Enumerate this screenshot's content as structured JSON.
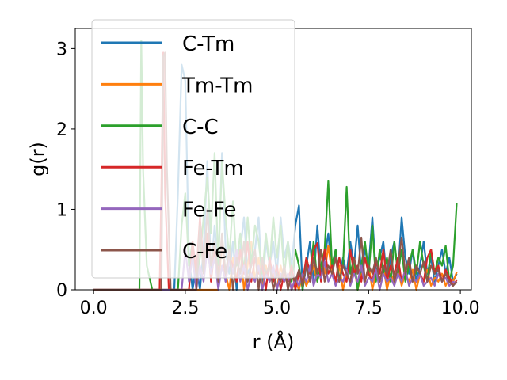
{
  "chart_data": {
    "type": "line",
    "title": "",
    "xlabel": "r (Å)",
    "ylabel": "g(r)",
    "xlim": [
      -0.5,
      10.3
    ],
    "ylim": [
      0,
      3.25
    ],
    "xticks": [
      0.0,
      2.5,
      5.0,
      7.5,
      10.0
    ],
    "xtick_labels": [
      "0.0",
      "2.5",
      "5.0",
      "7.5",
      "10.0"
    ],
    "yticks": [
      0,
      1,
      2,
      3
    ],
    "ytick_labels": [
      "0",
      "1",
      "2",
      "3"
    ],
    "grid": false,
    "legend_position": "top-left",
    "series": [
      {
        "name": "C-Tm",
        "color": "#1f77b4",
        "x": [
          0,
          2.2,
          2.3,
          2.4,
          2.5,
          2.6,
          2.7,
          2.8,
          2.9,
          3.0,
          3.1,
          3.2,
          3.3,
          3.4,
          3.5,
          3.6,
          3.7,
          3.8,
          3.9,
          4.0,
          4.1,
          4.2,
          4.3,
          4.4,
          4.5,
          4.6,
          4.7,
          4.8,
          4.9,
          5.0,
          5.1,
          5.2,
          5.3,
          5.4,
          5.5,
          5.6,
          5.7,
          5.8,
          5.9,
          6.0,
          6.1,
          6.2,
          6.3,
          6.4,
          6.5,
          6.6,
          6.7,
          6.8,
          6.9,
          7.0,
          7.1,
          7.2,
          7.3,
          7.4,
          7.5,
          7.6,
          7.7,
          7.8,
          7.9,
          8.0,
          8.1,
          8.2,
          8.3,
          8.4,
          8.5,
          8.6,
          8.7,
          8.8,
          8.9,
          9.0,
          9.1,
          9.2,
          9.3,
          9.4,
          9.5,
          9.6,
          9.7,
          9.8,
          9.9
        ],
        "y": [
          0,
          0,
          1.2,
          2.8,
          2.6,
          0.4,
          0.0,
          0.3,
          0.0,
          0.5,
          1.6,
          0.2,
          0.8,
          0.3,
          1.7,
          0.5,
          0.2,
          0.6,
          0.0,
          0.5,
          0.9,
          0.2,
          0.3,
          0.5,
          0.9,
          0.0,
          0.6,
          0.3,
          0.6,
          0.2,
          0.9,
          0.4,
          0.6,
          0.3,
          0.8,
          1.05,
          0.0,
          0.3,
          0.6,
          0.1,
          0.8,
          0.2,
          0.4,
          0.7,
          0.2,
          0.5,
          0.1,
          0.4,
          0.2,
          0.6,
          0.3,
          0.8,
          0.2,
          0.5,
          0.3,
          0.9,
          0.2,
          0.4,
          0.6,
          0.1,
          0.4,
          0.6,
          0.2,
          0.9,
          0.4,
          0.2,
          0.5,
          0.1,
          0.3,
          0.6,
          0.2,
          0.4,
          0.1,
          0.3,
          0.5,
          0.2,
          0.4,
          0.1,
          0.2
        ]
      },
      {
        "name": "Tm-Tm",
        "color": "#ff7f0e",
        "x": [
          0,
          3.4,
          3.5,
          3.6,
          3.7,
          3.8,
          3.9,
          4.0,
          4.1,
          4.2,
          4.3,
          4.4,
          4.5,
          4.6,
          4.7,
          4.8,
          4.9,
          5.0,
          5.1,
          5.2,
          5.3,
          5.4,
          5.5,
          5.6,
          5.7,
          5.8,
          5.9,
          6.0,
          6.1,
          6.2,
          6.3,
          6.4,
          6.5,
          6.6,
          6.7,
          6.8,
          6.9,
          7.0,
          7.1,
          7.2,
          7.3,
          7.4,
          7.5,
          7.6,
          7.7,
          7.8,
          7.9,
          8.0,
          8.1,
          8.2,
          8.3,
          8.4,
          8.5,
          8.6,
          8.7,
          8.8,
          8.9,
          9.0,
          9.1,
          9.2,
          9.3,
          9.4,
          9.5,
          9.6,
          9.7,
          9.8,
          9.9
        ],
        "y": [
          0,
          0,
          0.6,
          0.2,
          0.0,
          0.4,
          0.1,
          0.5,
          0.0,
          0.3,
          0.6,
          0.1,
          0.4,
          0.0,
          0.3,
          0.1,
          0.2,
          0.0,
          0.3,
          0.1,
          0.2,
          0.0,
          0.1,
          0.0,
          0.2,
          0.05,
          0.15,
          0.3,
          0.1,
          0.5,
          0.2,
          0.55,
          0.2,
          0.1,
          0.3,
          0.0,
          0.2,
          0.1,
          0.3,
          0.0,
          0.2,
          0.1,
          0.3,
          0.0,
          0.2,
          0.1,
          0.3,
          0.0,
          0.2,
          0.1,
          0.25,
          0.05,
          0.2,
          0.1,
          0.25,
          0.0,
          0.2,
          0.1,
          0.25,
          0.05,
          0.15,
          0.1,
          0.2,
          0.05,
          0.15,
          0.1,
          0.22
        ]
      },
      {
        "name": "C-C",
        "color": "#2ca02c",
        "x": [
          0,
          1.25,
          1.3,
          1.35,
          1.45,
          1.6,
          2.3,
          2.4,
          2.5,
          2.6,
          2.7,
          2.8,
          2.9,
          3.0,
          3.1,
          3.2,
          3.3,
          3.4,
          3.5,
          3.6,
          3.7,
          3.8,
          3.9,
          4.0,
          4.1,
          4.2,
          4.3,
          4.4,
          4.5,
          4.6,
          4.7,
          4.8,
          4.9,
          5.0,
          5.1,
          5.2,
          5.3,
          5.4,
          5.5,
          5.6,
          5.7,
          5.8,
          5.9,
          6.0,
          6.1,
          6.2,
          6.3,
          6.4,
          6.5,
          6.6,
          6.7,
          6.8,
          6.9,
          7.0,
          7.1,
          7.2,
          7.3,
          7.4,
          7.5,
          7.6,
          7.7,
          7.8,
          7.9,
          8.0,
          8.1,
          8.2,
          8.3,
          8.4,
          8.5,
          8.6,
          8.7,
          8.8,
          8.9,
          9.0,
          9.1,
          9.2,
          9.3,
          9.4,
          9.5,
          9.6,
          9.7,
          9.8,
          9.9
        ],
        "y": [
          0,
          0,
          3.1,
          1.5,
          0.3,
          0.0,
          0.0,
          0.8,
          1.2,
          0.3,
          0.6,
          0.1,
          0.4,
          0.9,
          1.4,
          0.7,
          1.7,
          0.3,
          1.6,
          0.9,
          0.4,
          1.1,
          0.3,
          0.7,
          0.2,
          0.9,
          0.3,
          0.8,
          0.6,
          0.2,
          0.7,
          0.3,
          0.9,
          0.4,
          0.8,
          0.2,
          0.6,
          0.1,
          0.5,
          0.3,
          0.0,
          0.4,
          0.2,
          0.6,
          0.1,
          0.3,
          0.5,
          1.35,
          0.3,
          0.5,
          0.1,
          0.3,
          1.28,
          0.2,
          0.4,
          0.0,
          0.3,
          0.6,
          0.2,
          0.8,
          0.1,
          0.5,
          0.2,
          0.4,
          0.1,
          0.6,
          0.2,
          0.5,
          0.1,
          0.3,
          0.5,
          0.2,
          0.6,
          0.3,
          0.1,
          0.5,
          0.2,
          0.4,
          0.3,
          0.55,
          0.1,
          0.3,
          1.08
        ]
      },
      {
        "name": "Fe-Tm",
        "color": "#d62728",
        "x": [
          0,
          1.8,
          1.85,
          1.9,
          1.95,
          2.05,
          2.6,
          2.7,
          2.8,
          2.9,
          3.0,
          3.1,
          3.2,
          3.3,
          3.4,
          3.5,
          3.6,
          3.7,
          3.8,
          3.9,
          4.0,
          4.1,
          4.2,
          4.3,
          4.4,
          4.5,
          4.6,
          4.7,
          4.8,
          4.9,
          5.0,
          5.1,
          5.2,
          5.3,
          5.4,
          5.5,
          5.6,
          5.7,
          5.8,
          5.9,
          6.0,
          6.1,
          6.2,
          6.3,
          6.4,
          6.5,
          6.6,
          6.7,
          6.8,
          6.9,
          7.0,
          7.1,
          7.2,
          7.3,
          7.4,
          7.5,
          7.6,
          7.7,
          7.8,
          7.9,
          8.0,
          8.1,
          8.2,
          8.3,
          8.4,
          8.5,
          8.6,
          8.7,
          8.8,
          8.9,
          9.0,
          9.1,
          9.2,
          9.3,
          9.4,
          9.5,
          9.6,
          9.7,
          9.8,
          9.9
        ],
        "y": [
          0,
          0,
          1.3,
          2.95,
          1.2,
          0.0,
          0.0,
          0.6,
          0.2,
          0.9,
          0.3,
          0.7,
          0.1,
          0.5,
          0.2,
          0.6,
          0.1,
          0.4,
          0.3,
          0.1,
          0.5,
          0.2,
          0.6,
          0.1,
          0.4,
          0.2,
          0.3,
          0.0,
          0.4,
          0.1,
          0.3,
          0.0,
          0.2,
          0.1,
          0.3,
          0.0,
          0.2,
          0.1,
          0.4,
          0.2,
          0.5,
          0.58,
          0.1,
          0.5,
          0.2,
          0.3,
          0.1,
          0.4,
          0.2,
          0.1,
          0.5,
          0.2,
          0.3,
          0.1,
          0.4,
          0.2,
          0.1,
          0.35,
          0.2,
          0.5,
          0.1,
          0.3,
          0.2,
          0.4,
          0.1,
          0.25,
          0.35,
          0.1,
          0.3,
          0.2,
          0.1,
          0.4,
          0.5,
          0.2,
          0.3,
          0.1,
          0.25,
          0.15,
          0.05,
          0.12
        ]
      },
      {
        "name": "Fe-Fe",
        "color": "#9467bd",
        "x": [
          0,
          2.4,
          2.5,
          2.6,
          2.7,
          2.8,
          2.9,
          3.0,
          3.1,
          3.2,
          3.3,
          3.4,
          3.5,
          3.6,
          3.7,
          3.8,
          3.9,
          4.0,
          4.1,
          4.2,
          4.3,
          4.4,
          4.5,
          4.6,
          4.7,
          4.8,
          4.9,
          5.0,
          5.1,
          5.2,
          5.3,
          5.4,
          5.5,
          5.6,
          5.7,
          5.8,
          5.9,
          6.0,
          6.1,
          6.2,
          6.3,
          6.4,
          6.5,
          6.6,
          6.7,
          6.8,
          6.9,
          7.0,
          7.1,
          7.2,
          7.3,
          7.4,
          7.5,
          7.6,
          7.7,
          7.8,
          7.9,
          8.0,
          8.1,
          8.2,
          8.3,
          8.4,
          8.5,
          8.6,
          8.7,
          8.8,
          8.9,
          9.0,
          9.1,
          9.2,
          9.3,
          9.4,
          9.5,
          9.6,
          9.7,
          9.8,
          9.9
        ],
        "y": [
          0,
          0,
          0.5,
          0.1,
          0.4,
          0.0,
          0.3,
          0.1,
          0.5,
          0.2,
          0.4,
          0.0,
          0.3,
          0.1,
          0.4,
          0.2,
          0.5,
          0.1,
          0.3,
          0.0,
          0.2,
          0.1,
          0.3,
          0.0,
          0.2,
          0.1,
          0.3,
          0.0,
          0.2,
          0.1,
          0.2,
          0.0,
          0.15,
          0.05,
          0.2,
          0.1,
          0.3,
          0.05,
          0.2,
          0.15,
          0.35,
          0.1,
          0.2,
          0.05,
          0.15,
          0.1,
          0.25,
          0.05,
          0.2,
          0.1,
          0.3,
          0.05,
          0.15,
          0.1,
          0.25,
          0.0,
          0.2,
          0.1,
          0.15,
          0.05,
          0.2,
          0.1,
          0.25,
          0.05,
          0.15,
          0.1,
          0.2,
          0.05,
          0.1,
          0.15,
          0.05,
          0.2,
          0.1,
          0.15,
          0.05,
          0.1,
          0.08
        ]
      },
      {
        "name": "C-Fe",
        "color": "#8c564b",
        "x": [
          0,
          1.85,
          1.9,
          1.95,
          2.0,
          2.1,
          2.8,
          2.9,
          3.0,
          3.1,
          3.2,
          3.3,
          3.4,
          3.5,
          3.6,
          3.7,
          3.8,
          3.9,
          4.0,
          4.1,
          4.2,
          4.3,
          4.4,
          4.5,
          4.6,
          4.7,
          4.8,
          4.9,
          5.0,
          5.1,
          5.2,
          5.3,
          5.4,
          5.5,
          5.6,
          5.7,
          5.8,
          5.9,
          6.0,
          6.1,
          6.2,
          6.3,
          6.4,
          6.5,
          6.6,
          6.7,
          6.8,
          6.9,
          7.0,
          7.1,
          7.2,
          7.3,
          7.4,
          7.5,
          7.6,
          7.7,
          7.8,
          7.9,
          8.0,
          8.1,
          8.2,
          8.3,
          8.4,
          8.5,
          8.6,
          8.7,
          8.8,
          8.9,
          9.0,
          9.1,
          9.2,
          9.3,
          9.4,
          9.5,
          9.6,
          9.7,
          9.8,
          9.9
        ],
        "y": [
          0,
          0,
          2.9,
          2.95,
          1.5,
          0.0,
          0.0,
          0.8,
          0.2,
          1.0,
          0.3,
          0.6,
          0.1,
          0.7,
          0.2,
          0.5,
          0.0,
          0.4,
          0.2,
          0.6,
          0.1,
          0.3,
          0.5,
          0.0,
          0.4,
          0.2,
          0.3,
          0.0,
          0.2,
          0.1,
          0.3,
          0.0,
          0.2,
          0.1,
          0.25,
          0.05,
          0.3,
          0.1,
          0.4,
          0.2,
          0.5,
          0.1,
          0.3,
          0.2,
          0.4,
          0.1,
          0.3,
          0.2,
          0.1,
          0.4,
          0.2,
          0.65,
          0.1,
          0.3,
          0.2,
          0.4,
          0.1,
          0.3,
          0.2,
          0.5,
          0.1,
          0.3,
          0.65,
          0.2,
          0.4,
          0.1,
          0.3,
          0.2,
          0.35,
          0.1,
          0.3,
          0.2,
          0.25,
          0.1,
          0.2,
          0.1,
          0.05,
          0.1
        ]
      }
    ]
  }
}
